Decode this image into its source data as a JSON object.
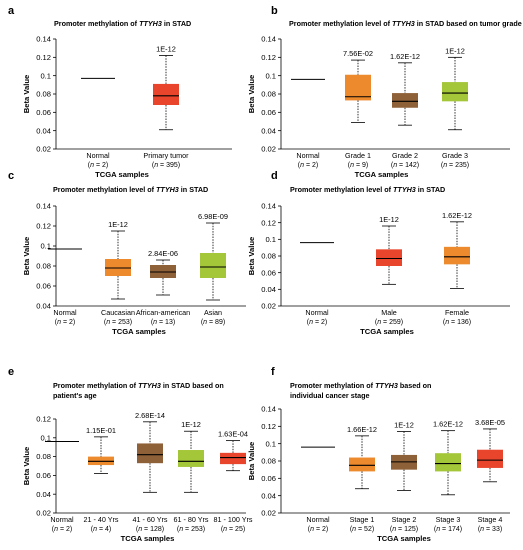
{
  "chart_data": [
    {
      "type": "box",
      "label": "a",
      "title": "Promoter methylation of TTYH3 in STAD",
      "title_parts": [
        "Promoter methylation  of ",
        "TTYH3",
        " in STAD"
      ],
      "title_line2": "",
      "ylabel": "Beta Value",
      "xlabel": "TCGA  samples",
      "ylim": [
        0.02,
        0.14
      ],
      "yticks": [
        "0.02",
        "0.04",
        "0.06",
        "0.08",
        "0.1",
        "0.12",
        "0.14"
      ],
      "categories": [
        {
          "name": "Normal",
          "n": "2",
          "pvalue": "",
          "color": "#000000",
          "median": 0.097,
          "q1": null,
          "q3": null,
          "min": null,
          "max": null
        },
        {
          "name": "Primary tumor",
          "n": "395",
          "pvalue": "1E-12",
          "color": "#e8452c",
          "median": 0.078,
          "q1": 0.068,
          "q3": 0.091,
          "min": 0.041,
          "max": 0.122
        }
      ]
    },
    {
      "type": "box",
      "label": "b",
      "title": "Promoter methylation level of TTYH3 in STAD based on tumor grade",
      "title_parts": [
        "Promoter methylation level of ",
        "TTYH3",
        " in STAD based on tumor grade"
      ],
      "title_line2": "",
      "ylabel": "Beta Value",
      "xlabel": "TCGA  samples",
      "ylim": [
        0.02,
        0.14
      ],
      "yticks": [
        "0.02",
        "0.04",
        "0.06",
        "0.08",
        "0.1",
        "0.12",
        "0.14"
      ],
      "categories": [
        {
          "name": "Normal",
          "n": "2",
          "pvalue": "",
          "color": "#000000",
          "median": 0.096,
          "q1": null,
          "q3": null,
          "min": null,
          "max": null
        },
        {
          "name": "Grade 1",
          "n": "9",
          "pvalue": "7.56E-02",
          "color": "#ee8a2e",
          "median": 0.077,
          "q1": 0.073,
          "q3": 0.101,
          "min": 0.049,
          "max": 0.117
        },
        {
          "name": "Grade 2",
          "n": "142",
          "pvalue": "1.62E-12",
          "color": "#8f6138",
          "median": 0.072,
          "q1": 0.065,
          "q3": 0.081,
          "min": 0.046,
          "max": 0.114
        },
        {
          "name": "Grade 3",
          "n": "235",
          "pvalue": "1E-12",
          "color": "#a4c639",
          "median": 0.081,
          "q1": 0.072,
          "q3": 0.093,
          "min": 0.041,
          "max": 0.12
        }
      ]
    },
    {
      "type": "box",
      "label": "c",
      "title": "Promoter methylation level of TTYH3 in STAD",
      "title_parts": [
        "Promoter methylation level  of ",
        "TTYH3",
        " in STAD"
      ],
      "title_line2": "",
      "ylabel": "Beta Value",
      "xlabel": "TCGA  samples",
      "ylim": [
        0.04,
        0.14
      ],
      "yticks": [
        "0.04",
        "0.06",
        "0.08",
        "0.1",
        "0.12",
        "0.14"
      ],
      "categories": [
        {
          "name": "Normal",
          "n": "2",
          "pvalue": "",
          "color": "#000000",
          "median": 0.097,
          "q1": null,
          "q3": null,
          "min": null,
          "max": null
        },
        {
          "name": "Caucasian",
          "n": "253",
          "pvalue": "1E-12",
          "color": "#ee8a2e",
          "median": 0.078,
          "q1": 0.07,
          "q3": 0.087,
          "min": 0.047,
          "max": 0.115
        },
        {
          "name": "African-american",
          "n": "13",
          "pvalue": "2.84E-06",
          "color": "#8f6138",
          "median": 0.074,
          "q1": 0.068,
          "q3": 0.081,
          "min": 0.051,
          "max": 0.086
        },
        {
          "name": "Asian",
          "n": "89",
          "pvalue": "6.98E-09",
          "color": "#a4c639",
          "median": 0.079,
          "q1": 0.068,
          "q3": 0.093,
          "min": 0.046,
          "max": 0.123
        }
      ]
    },
    {
      "type": "box",
      "label": "d",
      "title": "Promoter methylation level of TTYH3 in STAD",
      "title_parts": [
        "Promoter methylation level  of ",
        "TTYH3",
        " in STAD"
      ],
      "title_line2": "",
      "ylabel": "Beta Value",
      "xlabel": "TCGA  samples",
      "ylim": [
        0.02,
        0.14
      ],
      "yticks": [
        "0.02",
        "0.04",
        "0.06",
        "0.08",
        "0.1",
        "0.12",
        "0.14"
      ],
      "categories": [
        {
          "name": "Normal",
          "n": "2",
          "pvalue": "",
          "color": "#000000",
          "median": 0.096,
          "q1": null,
          "q3": null,
          "min": null,
          "max": null
        },
        {
          "name": "Male",
          "n": "259",
          "pvalue": "1E-12",
          "color": "#e8452c",
          "median": 0.077,
          "q1": 0.068,
          "q3": 0.088,
          "min": 0.046,
          "max": 0.116
        },
        {
          "name": "Female",
          "n": "136",
          "pvalue": "1.62E-12",
          "color": "#ee8a2e",
          "median": 0.079,
          "q1": 0.07,
          "q3": 0.091,
          "min": 0.041,
          "max": 0.121
        }
      ]
    },
    {
      "type": "box",
      "label": "e",
      "title": "Promoter methylation of TTYH3 in STAD based on patient's age",
      "title_parts": [
        "Promoter methylation  of ",
        "TTYH3",
        " in STAD based on"
      ],
      "title_line2": "patient's age",
      "ylabel": "Beta Value",
      "xlabel": "TCGA  samples",
      "ylim": [
        0.02,
        0.12
      ],
      "yticks": [
        "0.02",
        "0.04",
        "0.06",
        "0.08",
        "0.1",
        "0.12"
      ],
      "categories": [
        {
          "name": "Normal",
          "n": "2",
          "pvalue": "",
          "color": "#000000",
          "median": 0.096,
          "q1": null,
          "q3": null,
          "min": null,
          "max": null
        },
        {
          "name": "21 - 40 Yrs",
          "n": "4",
          "pvalue": "1.15E-01",
          "color": "#ee8a2e",
          "median": 0.075,
          "q1": 0.071,
          "q3": 0.08,
          "min": 0.062,
          "max": 0.101
        },
        {
          "name": "41 - 60 Yrs",
          "n": "128",
          "pvalue": "2.68E-14",
          "color": "#8f6138",
          "median": 0.082,
          "q1": 0.073,
          "q3": 0.094,
          "min": 0.042,
          "max": 0.117
        },
        {
          "name": "61 - 80 Yrs",
          "n": "253",
          "pvalue": "1E-12",
          "color": "#a4c639",
          "median": 0.075,
          "q1": 0.069,
          "q3": 0.087,
          "min": 0.042,
          "max": 0.107
        },
        {
          "name": "81 - 100 Yrs",
          "n": "25",
          "pvalue": "1.63E-04",
          "color": "#e8452c",
          "median": 0.079,
          "q1": 0.072,
          "q3": 0.084,
          "min": 0.065,
          "max": 0.097
        }
      ]
    },
    {
      "type": "box",
      "label": "f",
      "title": "Promoter methylation of TTYH3 based on individual cancer stage",
      "title_parts": [
        "Promoter methylation of ",
        "TTYH3",
        " based on"
      ],
      "title_line2": "individual cancer stage",
      "ylabel": "Beta Value",
      "xlabel": "TCGA  samples",
      "ylim": [
        0.02,
        0.14
      ],
      "yticks": [
        "0.02",
        "0.04",
        "0.06",
        "0.08",
        "0.1",
        "0.12",
        "0.14"
      ],
      "categories": [
        {
          "name": "Normal",
          "n": "2",
          "pvalue": "",
          "color": "#000000",
          "median": 0.096,
          "q1": null,
          "q3": null,
          "min": null,
          "max": null
        },
        {
          "name": "Stage 1",
          "n": "52",
          "pvalue": "1.66E-12",
          "color": "#ee8a2e",
          "median": 0.075,
          "q1": 0.068,
          "q3": 0.084,
          "min": 0.048,
          "max": 0.109
        },
        {
          "name": "Stage 2",
          "n": "125",
          "pvalue": "1E-12",
          "color": "#8f6138",
          "median": 0.079,
          "q1": 0.07,
          "q3": 0.087,
          "min": 0.046,
          "max": 0.114
        },
        {
          "name": "Stage 3",
          "n": "174",
          "pvalue": "1.62E-12",
          "color": "#a4c639",
          "median": 0.077,
          "q1": 0.068,
          "q3": 0.089,
          "min": 0.041,
          "max": 0.115
        },
        {
          "name": "Stage 4",
          "n": "33",
          "pvalue": "3.68E-05",
          "color": "#e8452c",
          "median": 0.081,
          "q1": 0.072,
          "q3": 0.093,
          "min": 0.056,
          "max": 0.117
        }
      ]
    }
  ]
}
